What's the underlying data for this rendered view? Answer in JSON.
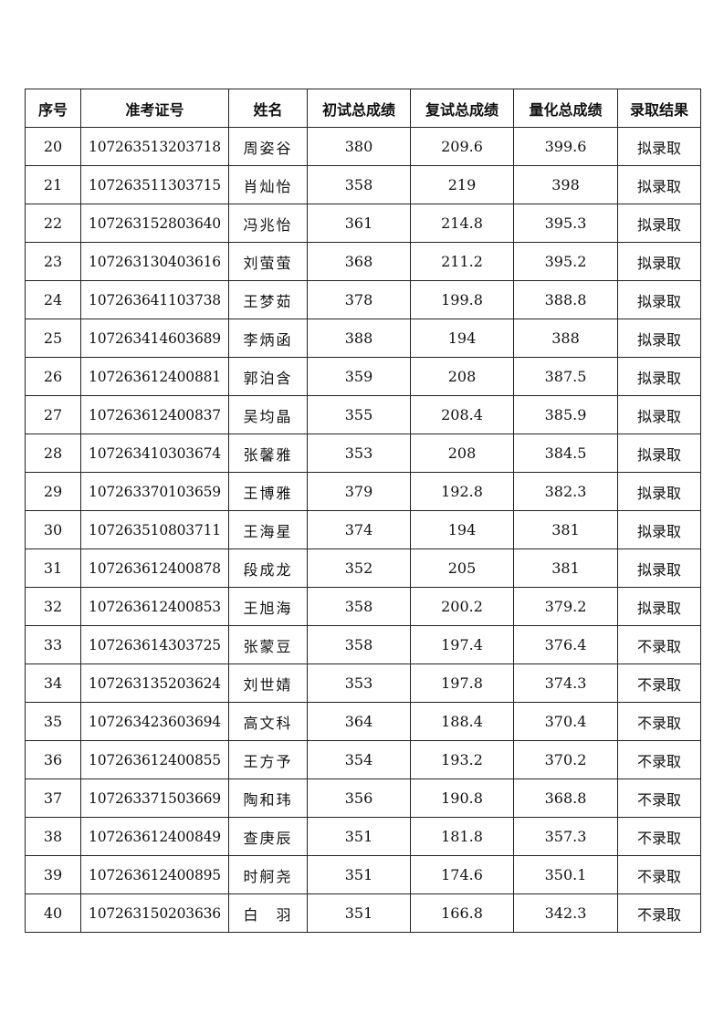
{
  "headers": [
    "序号",
    "准考证号",
    "姓名",
    "初试总成绩",
    "复试总成绩",
    "量化总成绩",
    "录取结果"
  ],
  "rows": [
    [
      "20",
      "107263513203718",
      "周姿谷",
      "380",
      "209.6",
      "399.6",
      "拟录取"
    ],
    [
      "21",
      "107263511303715",
      "肖灿怡",
      "358",
      "219",
      "398",
      "拟录取"
    ],
    [
      "22",
      "107263152803640",
      "冯兆怡",
      "361",
      "214.8",
      "395.3",
      "拟录取"
    ],
    [
      "23",
      "107263130403616",
      "刘萤萤",
      "368",
      "211.2",
      "395.2",
      "拟录取"
    ],
    [
      "24",
      "107263641103738",
      "王梦茹",
      "378",
      "199.8",
      "388.8",
      "拟录取"
    ],
    [
      "25",
      "107263414603689",
      "李炳函",
      "388",
      "194",
      "388",
      "拟录取"
    ],
    [
      "26",
      "107263612400881",
      "郭泊含",
      "359",
      "208",
      "387.5",
      "拟录取"
    ],
    [
      "27",
      "107263612400837",
      "吴均晶",
      "355",
      "208.4",
      "385.9",
      "拟录取"
    ],
    [
      "28",
      "107263410303674",
      "张馨雅",
      "353",
      "208",
      "384.5",
      "拟录取"
    ],
    [
      "29",
      "107263370103659",
      "王博雅",
      "379",
      "192.8",
      "382.3",
      "拟录取"
    ],
    [
      "30",
      "107263510803711",
      "王海星",
      "374",
      "194",
      "381",
      "拟录取"
    ],
    [
      "31",
      "107263612400878",
      "段成龙",
      "352",
      "205",
      "381",
      "拟录取"
    ],
    [
      "32",
      "107263612400853",
      "王旭海",
      "358",
      "200.2",
      "379.2",
      "拟录取"
    ],
    [
      "33",
      "107263614303725",
      "张蒙豆",
      "358",
      "197.4",
      "376.4",
      "不录取"
    ],
    [
      "34",
      "107263135203624",
      "刘世婧",
      "353",
      "197.8",
      "374.3",
      "不录取"
    ],
    [
      "35",
      "107263423603694",
      "高文科",
      "364",
      "188.4",
      "370.4",
      "不录取"
    ],
    [
      "36",
      "107263612400855",
      "王方予",
      "354",
      "193.2",
      "370.2",
      "不录取"
    ],
    [
      "37",
      "107263371503669",
      "陶和玮",
      "356",
      "190.8",
      "368.8",
      "不录取"
    ],
    [
      "38",
      "107263612400849",
      "查庚辰",
      "351",
      "181.8",
      "357.3",
      "不录取"
    ],
    [
      "39",
      "107263612400895",
      "时舸尧",
      "351",
      "174.6",
      "350.1",
      "不录取"
    ],
    [
      "40",
      "107263150203636",
      "白　羽",
      "351",
      "166.8",
      "342.3",
      "不录取"
    ]
  ]
}
